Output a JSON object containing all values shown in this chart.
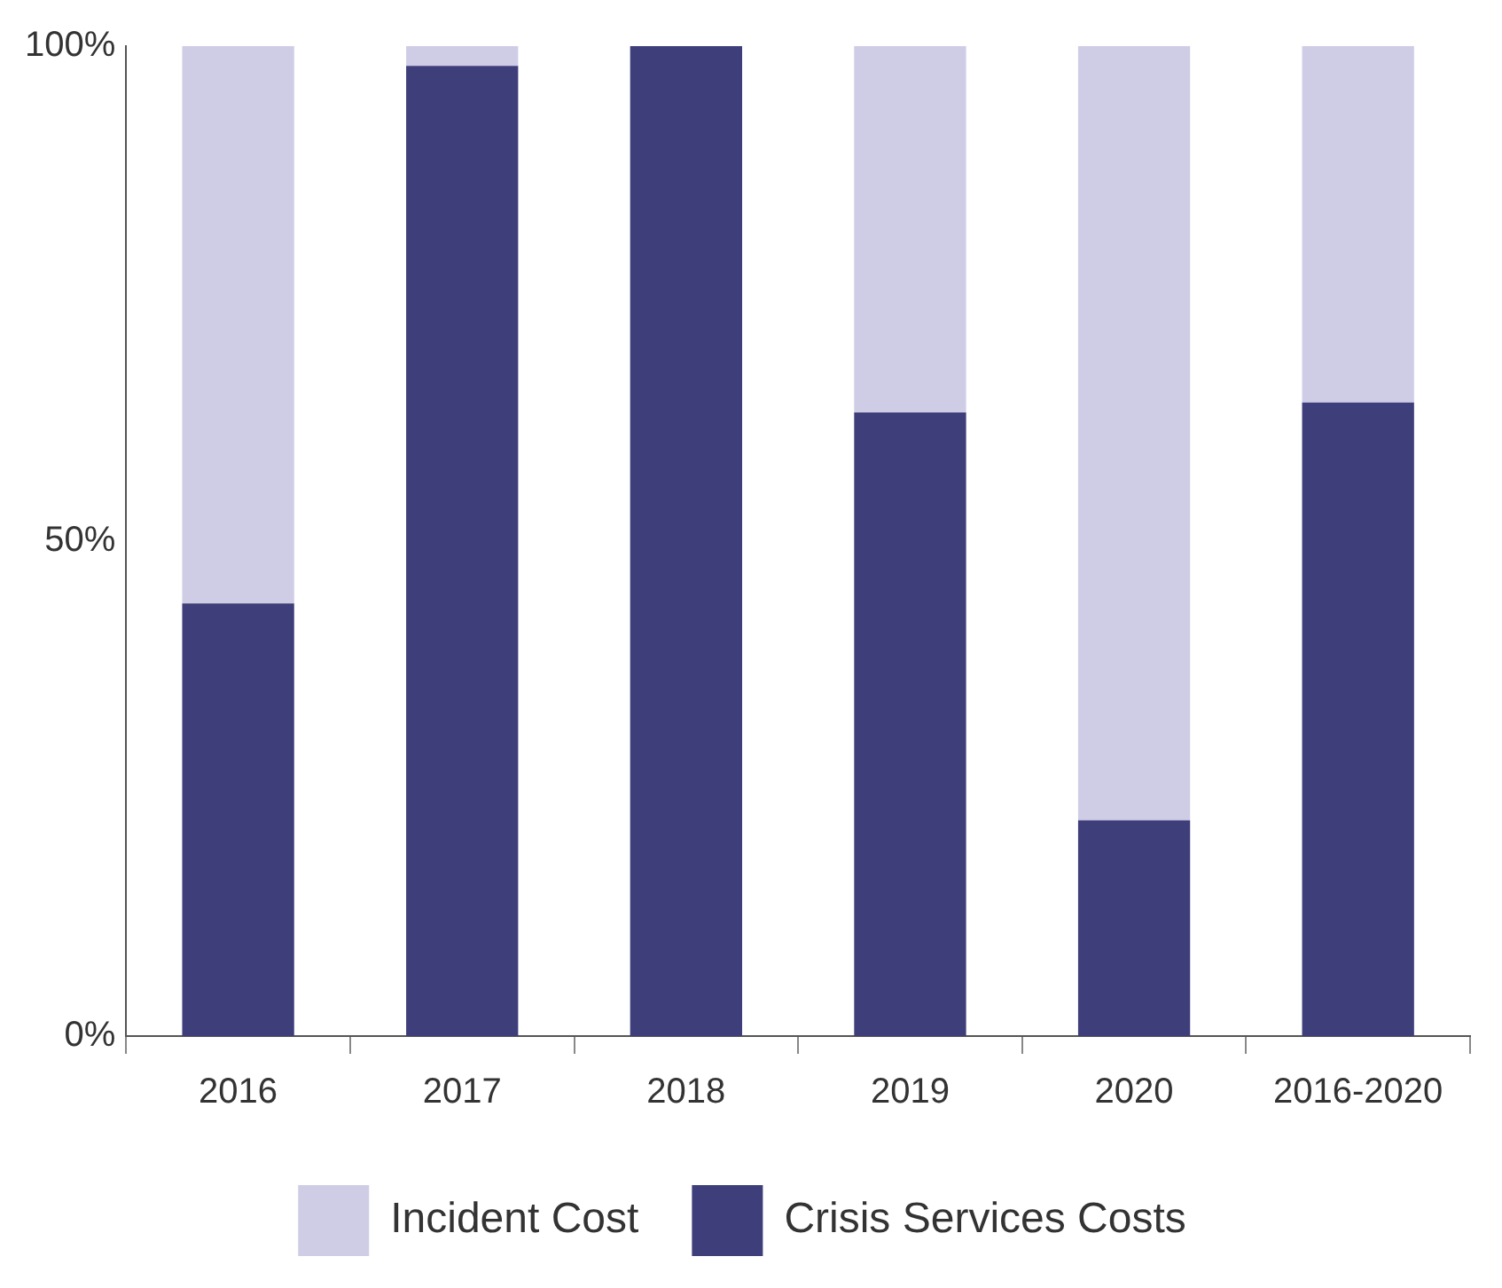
{
  "chart_data": {
    "type": "bar",
    "stacked": true,
    "categories": [
      "2016",
      "2017",
      "2018",
      "2019",
      "2020",
      "2016-2020"
    ],
    "series": [
      {
        "name": "Crisis Services Costs",
        "color": "#3e3f7a",
        "values": [
          43.7,
          98.0,
          100,
          63.0,
          21.8,
          64.0
        ]
      },
      {
        "name": "Incident Cost",
        "color": "#cfcde6",
        "values": [
          56.3,
          2.0,
          0,
          37.0,
          78.2,
          36.0
        ]
      }
    ],
    "ylim": [
      0,
      100
    ],
    "yticks": [
      {
        "value": 0,
        "label": "0%"
      },
      {
        "value": 50,
        "label": "50%"
      },
      {
        "value": 100,
        "label": "100%"
      }
    ],
    "grid": false,
    "legend": "bottom"
  }
}
